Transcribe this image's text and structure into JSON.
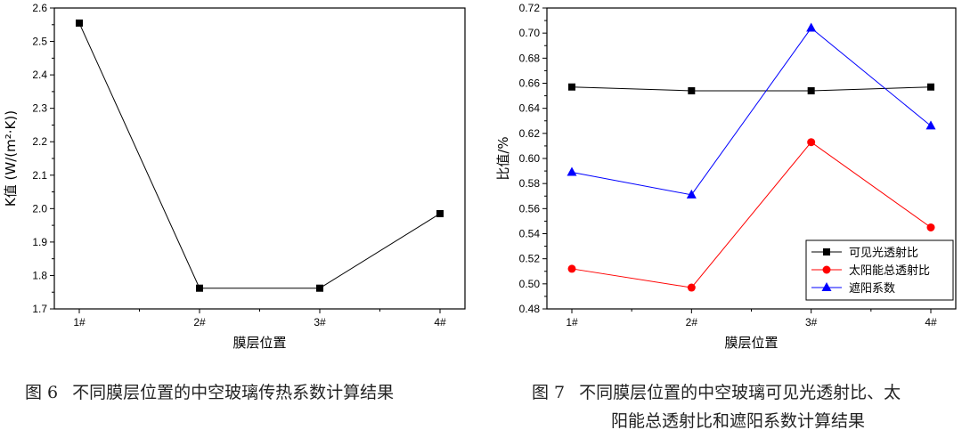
{
  "chart_data": [
    {
      "type": "line",
      "categories": [
        "1#",
        "2#",
        "3#",
        "4#"
      ],
      "series": [
        {
          "values": [
            2.555,
            1.762,
            1.762,
            1.985
          ],
          "color": "#000000",
          "marker": "square"
        }
      ],
      "xlabel": "膜层位置",
      "ylabel": "K值 (W/(m²·K))",
      "ylim": [
        1.7,
        2.6
      ],
      "yticks": [
        "1.7",
        "1.8",
        "1.9",
        "2.0",
        "2.1",
        "2.2",
        "2.3",
        "2.4",
        "2.5",
        "2.6"
      ],
      "grid": false
    },
    {
      "type": "line",
      "categories": [
        "1#",
        "2#",
        "3#",
        "4#"
      ],
      "series": [
        {
          "name": "可见光透射比",
          "values": [
            0.657,
            0.654,
            0.654,
            0.657
          ],
          "color": "#000000",
          "marker": "square"
        },
        {
          "name": "太阳能总透射比",
          "values": [
            0.512,
            0.497,
            0.613,
            0.545
          ],
          "color": "#ff0000",
          "marker": "circle"
        },
        {
          "name": "遮阳系数",
          "values": [
            0.589,
            0.571,
            0.704,
            0.626
          ],
          "color": "#0000ff",
          "marker": "triangle"
        }
      ],
      "xlabel": "膜层位置",
      "ylabel": "比值/%",
      "ylim": [
        0.48,
        0.72
      ],
      "yticks": [
        "0.48",
        "0.50",
        "0.52",
        "0.54",
        "0.56",
        "0.58",
        "0.60",
        "0.62",
        "0.64",
        "0.66",
        "0.68",
        "0.70",
        "0.72"
      ],
      "legend": "bottom-right",
      "grid": false
    }
  ],
  "captions": [
    {
      "num": "图 6",
      "lines": [
        "不同膜层位置的中空玻璃传热系数计算结果"
      ]
    },
    {
      "num": "图 7",
      "lines": [
        "不同膜层位置的中空玻璃可见光透射比、太",
        "阳能总透射比和遮阳系数计算结果"
      ]
    }
  ]
}
